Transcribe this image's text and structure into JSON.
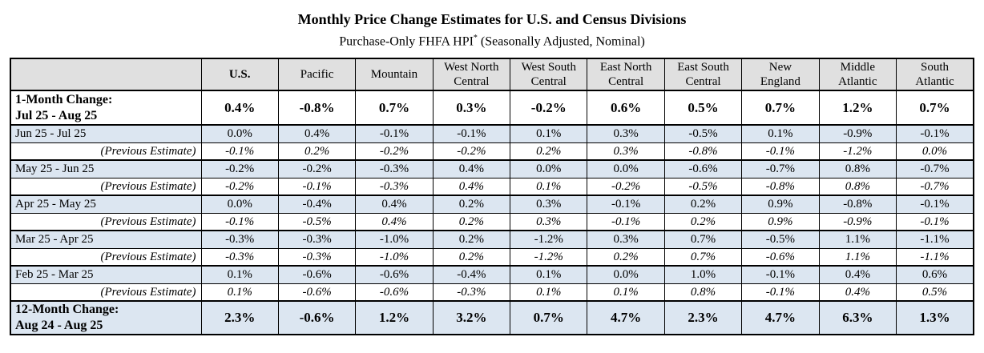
{
  "page_title": "Monthly Price Change Estimates for U.S. and Census Divisions",
  "subtitle": {
    "text": "Purchase-Only FHFA HPI",
    "footnote_marker": "*",
    "suffix": " (Seasonally Adjusted, Nominal)"
  },
  "colors": {
    "row_highlight_blue": "#dce6f1",
    "header_gray": "#e0e0e0",
    "border_black": "#000000"
  },
  "table": {
    "corner_label": "",
    "columns": [
      "U.S.",
      "Pacific",
      "Mountain",
      "West North Central",
      "West South Central",
      "East North Central",
      "East South Central",
      "New England",
      "Middle Atlantic",
      "South Atlantic"
    ],
    "rows": [
      {
        "type": "headline",
        "label_line1": "1-Month Change:",
        "label_line2": "Jul 25 - Aug 25",
        "values": [
          "0.4%",
          "-0.8%",
          "0.7%",
          "0.3%",
          "-0.2%",
          "0.6%",
          "0.5%",
          "0.7%",
          "1.2%",
          "0.7%"
        ]
      },
      {
        "type": "month",
        "label": "Jun 25 - Jul 25",
        "values": [
          "0.0%",
          "0.4%",
          "-0.1%",
          "-0.1%",
          "0.1%",
          "0.3%",
          "-0.5%",
          "0.1%",
          "-0.9%",
          "-0.1%"
        ]
      },
      {
        "type": "prev",
        "label": "(Previous Estimate)",
        "values": [
          "-0.1%",
          "0.2%",
          "-0.2%",
          "-0.2%",
          "0.2%",
          "0.3%",
          "-0.8%",
          "-0.1%",
          "-1.2%",
          "0.0%"
        ]
      },
      {
        "type": "month",
        "label": "May 25 - Jun 25",
        "values": [
          "-0.2%",
          "-0.2%",
          "-0.3%",
          "0.4%",
          "0.0%",
          "0.0%",
          "-0.6%",
          "-0.7%",
          "0.8%",
          "-0.7%"
        ]
      },
      {
        "type": "prev",
        "label": "(Previous Estimate)",
        "values": [
          "-0.2%",
          "-0.1%",
          "-0.3%",
          "0.4%",
          "0.1%",
          "-0.2%",
          "-0.5%",
          "-0.8%",
          "0.8%",
          "-0.7%"
        ]
      },
      {
        "type": "month",
        "label": "Apr 25 - May 25",
        "values": [
          "0.0%",
          "-0.4%",
          "0.4%",
          "0.2%",
          "0.3%",
          "-0.1%",
          "0.2%",
          "0.9%",
          "-0.8%",
          "-0.1%"
        ]
      },
      {
        "type": "prev",
        "label": "(Previous Estimate)",
        "values": [
          "-0.1%",
          "-0.5%",
          "0.4%",
          "0.2%",
          "0.3%",
          "-0.1%",
          "0.2%",
          "0.9%",
          "-0.9%",
          "-0.1%"
        ]
      },
      {
        "type": "month",
        "label": "Mar 25 - Apr 25",
        "values": [
          "-0.3%",
          "-0.3%",
          "-1.0%",
          "0.2%",
          "-1.2%",
          "0.3%",
          "0.7%",
          "-0.5%",
          "1.1%",
          "-1.1%"
        ]
      },
      {
        "type": "prev",
        "label": "(Previous Estimate)",
        "values": [
          "-0.3%",
          "-0.3%",
          "-1.0%",
          "0.2%",
          "-1.2%",
          "0.2%",
          "0.7%",
          "-0.6%",
          "1.1%",
          "-1.1%"
        ]
      },
      {
        "type": "month",
        "label": "Feb 25 - Mar 25",
        "values": [
          "0.1%",
          "-0.6%",
          "-0.6%",
          "-0.4%",
          "0.1%",
          "0.0%",
          "1.0%",
          "-0.1%",
          "0.4%",
          "0.6%"
        ]
      },
      {
        "type": "prev",
        "label": "(Previous Estimate)",
        "values": [
          "0.1%",
          "-0.6%",
          "-0.6%",
          "-0.3%",
          "0.1%",
          "0.1%",
          "0.8%",
          "-0.1%",
          "0.4%",
          "0.5%"
        ]
      },
      {
        "type": "headline12",
        "label_line1": "12-Month Change:",
        "label_line2": "Aug 24 - Aug 25",
        "values": [
          "2.3%",
          "-0.6%",
          "1.2%",
          "3.2%",
          "0.7%",
          "4.7%",
          "2.3%",
          "4.7%",
          "6.3%",
          "1.3%"
        ]
      }
    ]
  }
}
